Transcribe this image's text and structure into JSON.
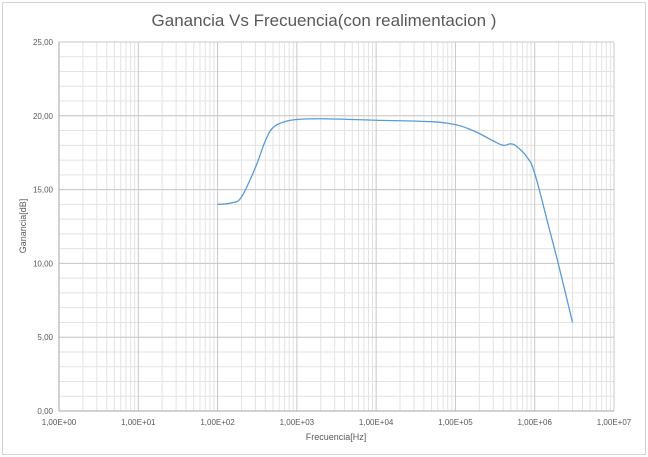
{
  "chart_data": {
    "type": "line",
    "title": "Ganancia Vs Frecuencia(con realimentacion )",
    "xlabel": "Frecuencia[Hz]",
    "ylabel": "Ganancia[dB]",
    "x_scale": "log",
    "xlim": [
      1,
      10000000
    ],
    "ylim": [
      0,
      25
    ],
    "x_ticks": [
      1,
      10,
      100,
      1000,
      10000,
      100000,
      1000000,
      10000000
    ],
    "x_tick_labels": [
      "1,00E+00",
      "1,00E+01",
      "1,00E+02",
      "1,00E+03",
      "1,00E+04",
      "1,00E+05",
      "1,00E+06",
      "1,00E+07"
    ],
    "y_ticks": [
      0,
      5,
      10,
      15,
      20,
      25
    ],
    "y_tick_labels": [
      "0,00",
      "5,00",
      "10,00",
      "15,00",
      "20,00",
      "25,00"
    ],
    "grid": "major and minor",
    "legend": "none",
    "series": [
      {
        "color": "#5b9bd5",
        "x": [
          100,
          150,
          200,
          300,
          400,
          500,
          700,
          1000,
          2000,
          5000,
          10000,
          50000,
          100000,
          150000,
          200000,
          300000,
          400000,
          500000,
          600000,
          800000,
          1000000,
          1500000,
          2000000,
          3000000
        ],
        "y": [
          14.0,
          14.1,
          14.5,
          16.5,
          18.3,
          19.2,
          19.6,
          19.75,
          19.8,
          19.75,
          19.7,
          19.6,
          19.4,
          19.1,
          18.8,
          18.3,
          18.0,
          18.1,
          17.9,
          17.2,
          16.1,
          12.5,
          9.9,
          6.0
        ]
      }
    ]
  }
}
